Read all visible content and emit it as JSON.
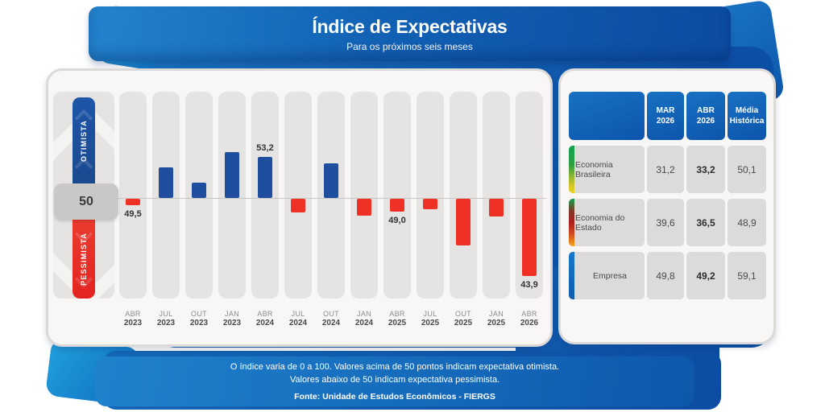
{
  "header": {
    "title": "Índice de Expectativas",
    "subtitle": "Para os próximos seis meses"
  },
  "chart_data": {
    "type": "bar",
    "title": "Índice de Expectativas",
    "subtitle": "Para os próximos seis meses",
    "baseline": 50,
    "axis_range": [
      0,
      100
    ],
    "gauge": {
      "top_label": "OTIMISTA",
      "midpoint_label": "50",
      "bottom_label": "PESSIMISTA"
    },
    "categories": [
      "ABR 2023",
      "JUL 2023",
      "OUT 2023",
      "JAN 2023",
      "ABR 2024",
      "JUL 2024",
      "OUT 2024",
      "JAN 2024",
      "ABR 2025",
      "JUL 2025",
      "OUT 2025",
      "JAN 2025",
      "ABR 2026"
    ],
    "values": [
      49.5,
      52.4,
      51.2,
      53.6,
      53.2,
      48.9,
      52.7,
      48.7,
      49.0,
      49.2,
      46.3,
      48.6,
      43.9
    ],
    "labeled_points": {
      "0": "49,5",
      "4": "53,2",
      "8": "49,0",
      "12": "43,9"
    },
    "colors": {
      "above_baseline": "#204e9e",
      "below_baseline": "#ee3124"
    }
  },
  "table": {
    "columns": [
      "MAR 2026",
      "ABR 2026",
      "Média Histórica"
    ],
    "bold_column_index": 1,
    "rows": [
      {
        "label": "Economia Brasileira",
        "accent": "accent-brasil",
        "values": [
          "31,2",
          "33,2",
          "50,1"
        ]
      },
      {
        "label": "Economia do Estado",
        "accent": "accent-rs",
        "values": [
          "39,6",
          "36,5",
          "48,9"
        ]
      },
      {
        "label": "Empresa",
        "accent": "accent-empresa",
        "values": [
          "49,8",
          "49,2",
          "59,1"
        ]
      }
    ]
  },
  "footer": {
    "line1": "O índice varia de 0 a 100. Valores acima de 50 pontos indicam expectativa otimista.",
    "line2": "Valores abaixo de 50 indicam expectativa pessimista.",
    "source": "Fonte: Unidade de Estudos Econômicos - FIERGS"
  }
}
